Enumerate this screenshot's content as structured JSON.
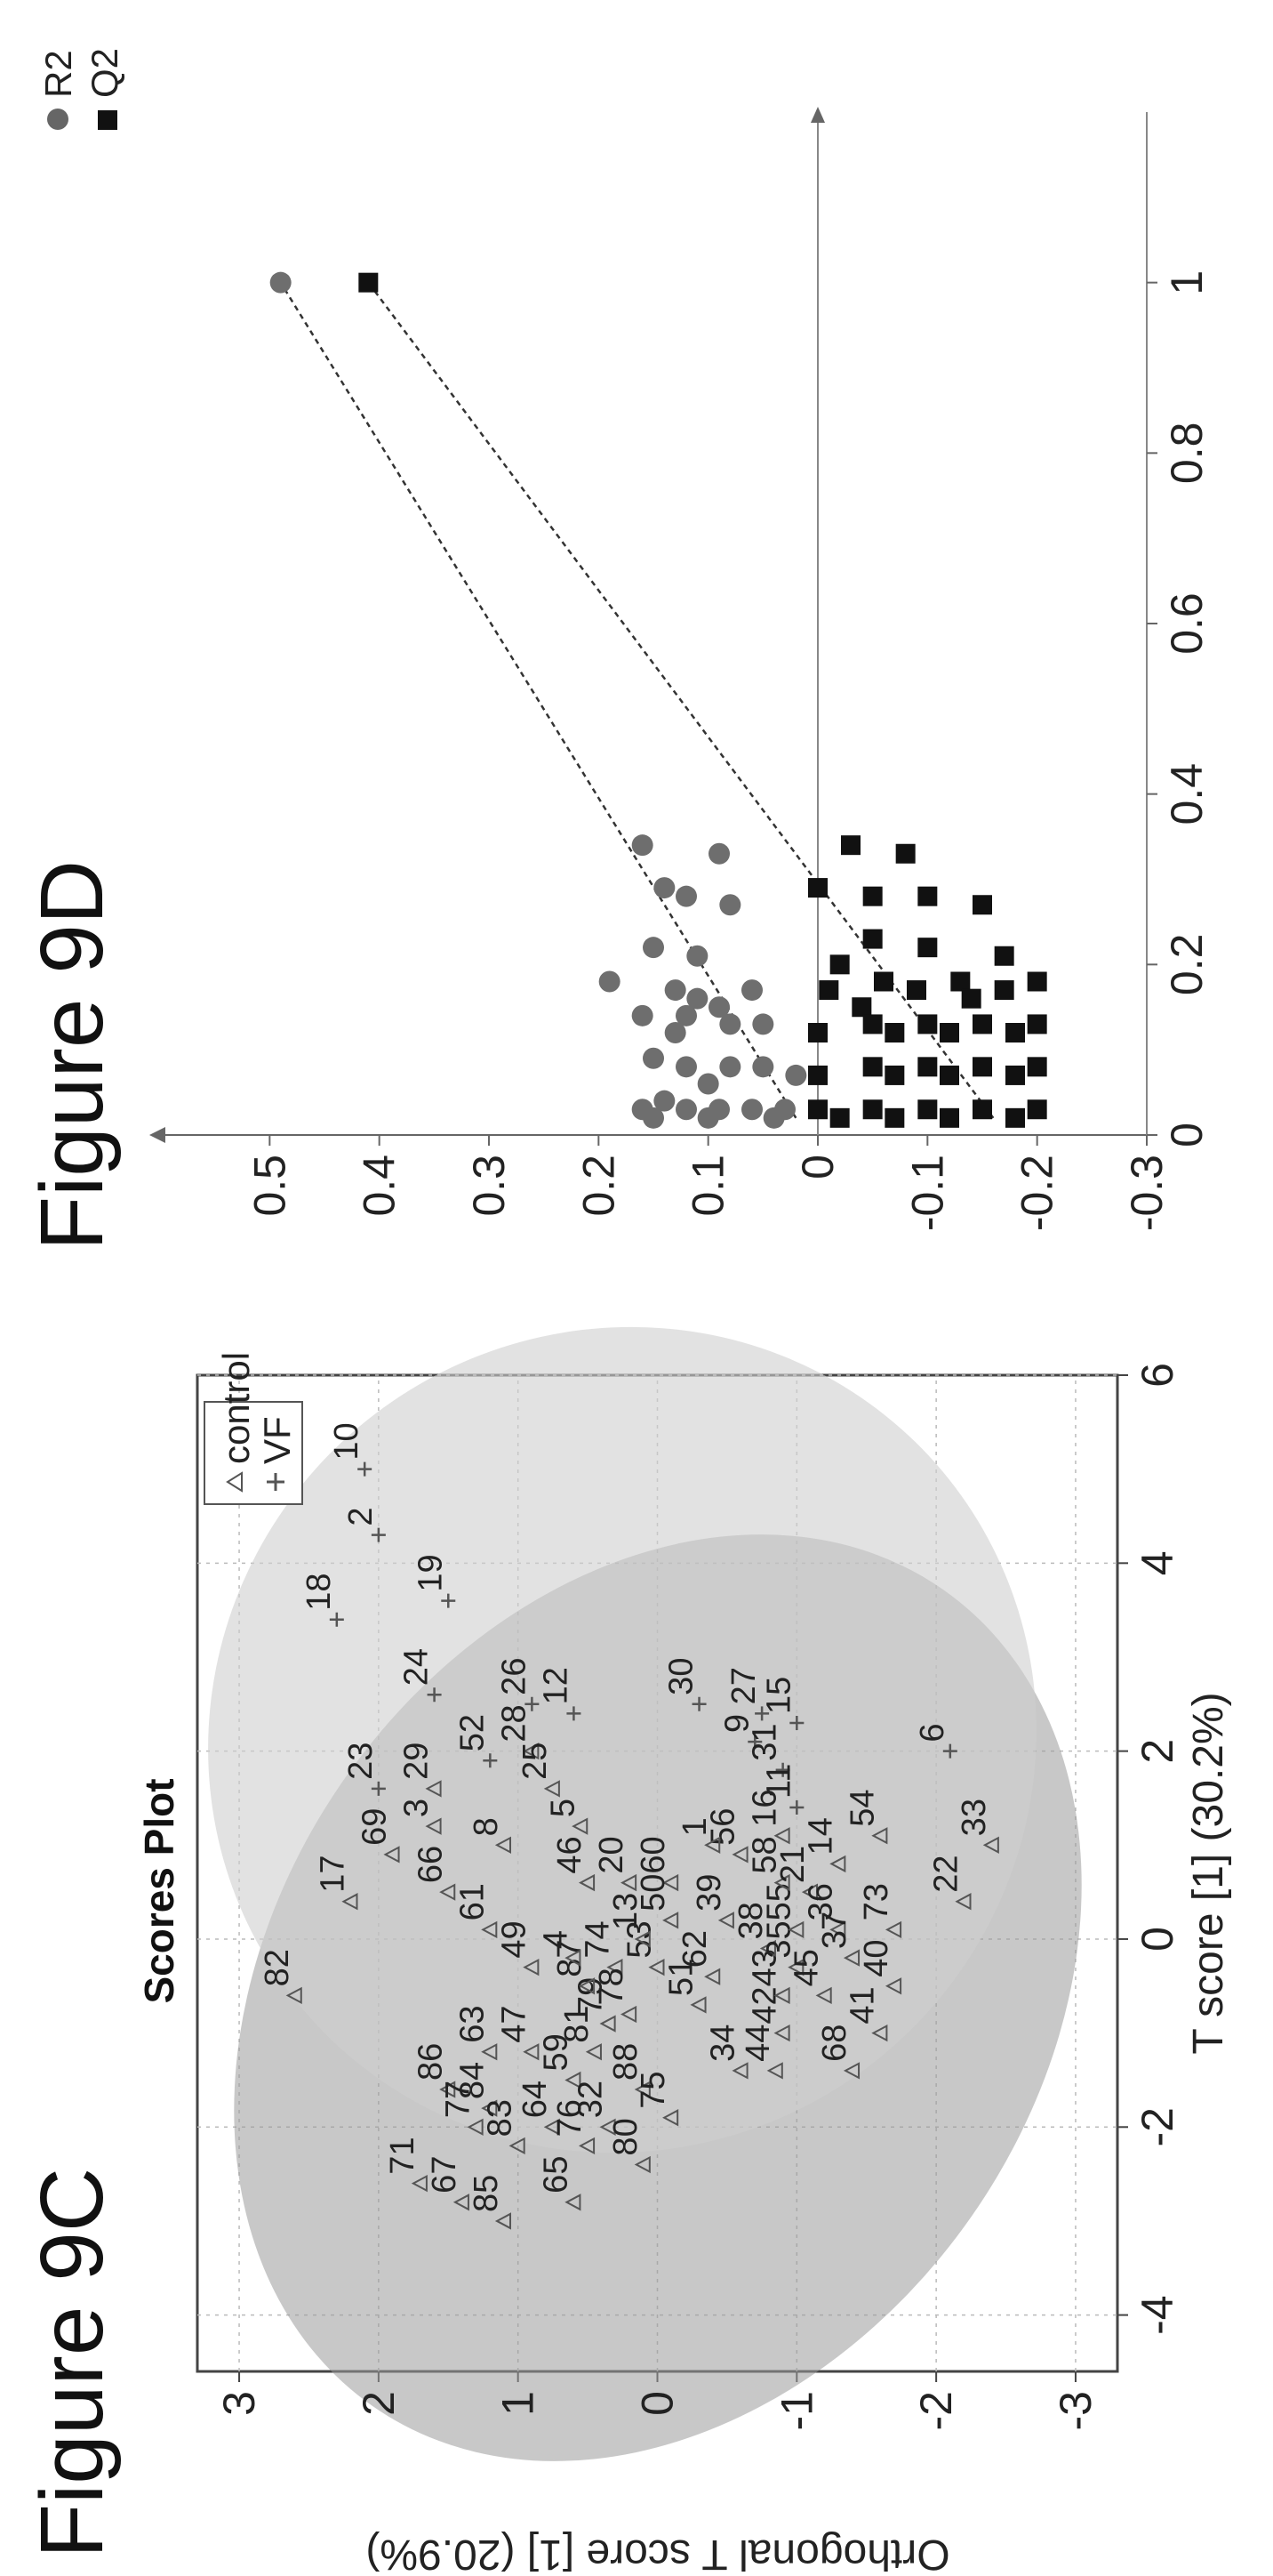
{
  "chart_data": [
    {
      "figure_label": "Figure 9C",
      "type": "scatter",
      "title": "Scores Plot",
      "xlabel": "T score [1] (30.2%)",
      "ylabel": "Orthogonal T score [1] (20.9%)",
      "xlim": [
        -4.6,
        6
      ],
      "ylim": [
        -3.3,
        3.3
      ],
      "xticks": [
        "-4",
        "-2",
        "0",
        "2",
        "4",
        "6"
      ],
      "yticks": [
        "-3",
        "-2",
        "-1",
        "0",
        "1",
        "2",
        "3"
      ],
      "legend": {
        "placement": "top-right",
        "entries": [
          "control",
          "VF"
        ]
      },
      "grid": true,
      "series": [
        {
          "name": "control",
          "marker": "triangle",
          "points": [
            {
              "label": "82",
              "x": -0.6,
              "y": 2.6
            },
            {
              "label": "17",
              "x": 0.4,
              "y": 2.2
            },
            {
              "label": "71",
              "x": -2.6,
              "y": 1.7
            },
            {
              "label": "86",
              "x": -1.6,
              "y": 1.5
            },
            {
              "label": "67",
              "x": -2.8,
              "y": 1.4
            },
            {
              "label": "77",
              "x": -2.0,
              "y": 1.3
            },
            {
              "label": "84",
              "x": -1.8,
              "y": 1.2
            },
            {
              "label": "85",
              "x": -3.0,
              "y": 1.1
            },
            {
              "label": "83",
              "x": -2.2,
              "y": 1.0
            },
            {
              "label": "63",
              "x": -1.2,
              "y": 1.2
            },
            {
              "label": "47",
              "x": -1.2,
              "y": 0.9
            },
            {
              "label": "69",
              "x": 0.9,
              "y": 1.9
            },
            {
              "label": "66",
              "x": 0.5,
              "y": 1.5
            },
            {
              "label": "61",
              "x": 0.1,
              "y": 1.2
            },
            {
              "label": "64",
              "x": -2.0,
              "y": 0.75
            },
            {
              "label": "65",
              "x": -2.8,
              "y": 0.6
            },
            {
              "label": "76",
              "x": -2.2,
              "y": 0.5
            },
            {
              "label": "59",
              "x": -1.5,
              "y": 0.6
            },
            {
              "label": "81",
              "x": -1.2,
              "y": 0.45
            },
            {
              "label": "32",
              "x": -2.0,
              "y": 0.35
            },
            {
              "label": "88",
              "x": -1.6,
              "y": 0.1
            },
            {
              "label": "80",
              "x": -2.4,
              "y": 0.1
            },
            {
              "label": "75",
              "x": -1.9,
              "y": -0.1
            },
            {
              "label": "79",
              "x": -0.9,
              "y": 0.35
            },
            {
              "label": "87",
              "x": -0.5,
              "y": 0.5
            },
            {
              "label": "74",
              "x": -0.3,
              "y": 0.3
            },
            {
              "label": "78",
              "x": -0.8,
              "y": 0.2
            },
            {
              "label": "53",
              "x": -0.3,
              "y": 0.0
            },
            {
              "label": "13",
              "x": 0.0,
              "y": 0.1
            },
            {
              "label": "49",
              "x": -0.3,
              "y": 0.9
            },
            {
              "label": "4",
              "x": -0.2,
              "y": 0.6
            },
            {
              "label": "46",
              "x": 0.6,
              "y": 0.5
            },
            {
              "label": "20",
              "x": 0.6,
              "y": 0.2
            },
            {
              "label": "60",
              "x": 0.6,
              "y": -0.1
            },
            {
              "label": "50",
              "x": 0.2,
              "y": -0.1
            },
            {
              "label": "51",
              "x": -0.7,
              "y": -0.3
            },
            {
              "label": "62",
              "x": -0.4,
              "y": -0.4
            },
            {
              "label": "39",
              "x": 0.2,
              "y": -0.5
            },
            {
              "label": "34",
              "x": -1.4,
              "y": -0.6
            },
            {
              "label": "44",
              "x": -1.4,
              "y": -0.85
            },
            {
              "label": "42",
              "x": -1.0,
              "y": -0.9
            },
            {
              "label": "43",
              "x": -0.6,
              "y": -0.9
            },
            {
              "label": "38",
              "x": -0.1,
              "y": -0.8
            },
            {
              "label": "35",
              "x": -0.3,
              "y": -1.0
            },
            {
              "label": "55",
              "x": 0.1,
              "y": -1.0
            },
            {
              "label": "58",
              "x": 0.6,
              "y": -0.9
            },
            {
              "label": "21",
              "x": 0.5,
              "y": -1.1
            },
            {
              "label": "45",
              "x": -0.6,
              "y": -1.2
            },
            {
              "label": "36",
              "x": 0.1,
              "y": -1.3
            },
            {
              "label": "37",
              "x": -0.2,
              "y": -1.4
            },
            {
              "label": "68",
              "x": -1.4,
              "y": -1.4
            },
            {
              "label": "41",
              "x": -1.0,
              "y": -1.6
            },
            {
              "label": "40",
              "x": -0.5,
              "y": -1.7
            },
            {
              "label": "73",
              "x": 0.1,
              "y": -1.7
            },
            {
              "label": "14",
              "x": 0.8,
              "y": -1.3
            },
            {
              "label": "54",
              "x": 1.1,
              "y": -1.6
            },
            {
              "label": "22",
              "x": 0.4,
              "y": -2.2
            },
            {
              "label": "33",
              "x": 1.0,
              "y": -2.4
            },
            {
              "label": "56",
              "x": 0.9,
              "y": -0.6
            },
            {
              "label": "16",
              "x": 1.1,
              "y": -0.9
            },
            {
              "label": "1",
              "x": 1.0,
              "y": -0.4
            },
            {
              "label": "5",
              "x": 1.2,
              "y": 0.55
            },
            {
              "label": "8",
              "x": 1.0,
              "y": 1.1
            },
            {
              "label": "3",
              "x": 1.2,
              "y": 1.6
            },
            {
              "label": "29",
              "x": 1.6,
              "y": 1.6
            },
            {
              "label": "28",
              "x": 2.0,
              "y": 0.9
            },
            {
              "label": "25",
              "x": 1.6,
              "y": 0.75
            }
          ]
        },
        {
          "name": "VF",
          "marker": "plus",
          "points": [
            {
              "label": "10",
              "x": 5.0,
              "y": 2.1
            },
            {
              "label": "2",
              "x": 4.3,
              "y": 2.0
            },
            {
              "label": "19",
              "x": 3.6,
              "y": 1.5
            },
            {
              "label": "18",
              "x": 3.4,
              "y": 2.3
            },
            {
              "label": "24",
              "x": 2.6,
              "y": 1.6
            },
            {
              "label": "23",
              "x": 1.6,
              "y": 2.0
            },
            {
              "label": "26",
              "x": 2.5,
              "y": 0.9
            },
            {
              "label": "52",
              "x": 1.9,
              "y": 1.2
            },
            {
              "label": "12",
              "x": 2.4,
              "y": 0.6
            },
            {
              "label": "30",
              "x": 2.5,
              "y": -0.3
            },
            {
              "label": "27",
              "x": 2.4,
              "y": -0.75
            },
            {
              "label": "15",
              "x": 2.3,
              "y": -1.0
            },
            {
              "label": "9",
              "x": 2.1,
              "y": -0.7
            },
            {
              "label": "31",
              "x": 1.8,
              "y": -0.9
            },
            {
              "label": "11",
              "x": 1.4,
              "y": -1.0
            },
            {
              "label": "6",
              "x": 2.0,
              "y": -2.1
            }
          ]
        }
      ]
    },
    {
      "figure_label": "Figure 9D",
      "type": "scatter",
      "xlim": [
        0,
        1.2
      ],
      "ylim": [
        -0.3,
        0.6
      ],
      "xticks": [
        "0",
        "0.2",
        "0.4",
        "0.6",
        "0.8",
        "1"
      ],
      "yticks": [
        "-0.3",
        "-0.2",
        "-0.1",
        "0",
        "0.1",
        "0.2",
        "0.3",
        "0.4",
        "0.5"
      ],
      "legend": {
        "placement": "top-right",
        "entries": [
          "R2",
          "Q2"
        ]
      },
      "series": [
        {
          "name": "R2",
          "marker": "circle",
          "regression": {
            "x": [
              0.02,
              1.0
            ],
            "y": [
              0.02,
              0.49
            ]
          },
          "points": [
            {
              "x": 1.0,
              "y": 0.49
            },
            {
              "x": 0.34,
              "y": 0.16
            },
            {
              "x": 0.33,
              "y": 0.09
            },
            {
              "x": 0.29,
              "y": 0.14
            },
            {
              "x": 0.28,
              "y": 0.12
            },
            {
              "x": 0.27,
              "y": 0.08
            },
            {
              "x": 0.22,
              "y": 0.15
            },
            {
              "x": 0.21,
              "y": 0.11
            },
            {
              "x": 0.18,
              "y": 0.19
            },
            {
              "x": 0.17,
              "y": 0.13
            },
            {
              "x": 0.17,
              "y": 0.06
            },
            {
              "x": 0.16,
              "y": 0.11
            },
            {
              "x": 0.15,
              "y": 0.09
            },
            {
              "x": 0.14,
              "y": 0.16
            },
            {
              "x": 0.14,
              "y": 0.12
            },
            {
              "x": 0.13,
              "y": 0.08
            },
            {
              "x": 0.13,
              "y": 0.05
            },
            {
              "x": 0.12,
              "y": 0.13
            },
            {
              "x": 0.09,
              "y": 0.15
            },
            {
              "x": 0.08,
              "y": 0.12
            },
            {
              "x": 0.08,
              "y": 0.08
            },
            {
              "x": 0.08,
              "y": 0.05
            },
            {
              "x": 0.07,
              "y": 0.02
            },
            {
              "x": 0.06,
              "y": 0.1
            },
            {
              "x": 0.04,
              "y": 0.14
            },
            {
              "x": 0.03,
              "y": 0.16
            },
            {
              "x": 0.03,
              "y": 0.12
            },
            {
              "x": 0.03,
              "y": 0.09
            },
            {
              "x": 0.03,
              "y": 0.06
            },
            {
              "x": 0.03,
              "y": 0.03
            },
            {
              "x": 0.02,
              "y": 0.15
            },
            {
              "x": 0.02,
              "y": 0.1
            },
            {
              "x": 0.02,
              "y": 0.04
            }
          ]
        },
        {
          "name": "Q2",
          "marker": "square",
          "regression": {
            "x": [
              0.02,
              1.0
            ],
            "y": [
              -0.16,
              0.41
            ]
          },
          "points": [
            {
              "x": 1.0,
              "y": 0.41
            },
            {
              "x": 0.34,
              "y": -0.03
            },
            {
              "x": 0.33,
              "y": -0.08
            },
            {
              "x": 0.29,
              "y": 0.0
            },
            {
              "x": 0.28,
              "y": -0.05
            },
            {
              "x": 0.28,
              "y": -0.1
            },
            {
              "x": 0.27,
              "y": -0.15
            },
            {
              "x": 0.23,
              "y": -0.05
            },
            {
              "x": 0.22,
              "y": -0.1
            },
            {
              "x": 0.21,
              "y": -0.17
            },
            {
              "x": 0.2,
              "y": -0.02
            },
            {
              "x": 0.18,
              "y": -0.2
            },
            {
              "x": 0.18,
              "y": -0.13
            },
            {
              "x": 0.18,
              "y": -0.06
            },
            {
              "x": 0.17,
              "y": -0.17
            },
            {
              "x": 0.17,
              "y": -0.09
            },
            {
              "x": 0.17,
              "y": -0.01
            },
            {
              "x": 0.16,
              "y": -0.14
            },
            {
              "x": 0.15,
              "y": -0.04
            },
            {
              "x": 0.13,
              "y": -0.2
            },
            {
              "x": 0.13,
              "y": -0.15
            },
            {
              "x": 0.13,
              "y": -0.1
            },
            {
              "x": 0.13,
              "y": -0.05
            },
            {
              "x": 0.12,
              "y": 0.0
            },
            {
              "x": 0.12,
              "y": -0.18
            },
            {
              "x": 0.12,
              "y": -0.12
            },
            {
              "x": 0.12,
              "y": -0.07
            },
            {
              "x": 0.08,
              "y": -0.2
            },
            {
              "x": 0.08,
              "y": -0.15
            },
            {
              "x": 0.08,
              "y": -0.1
            },
            {
              "x": 0.08,
              "y": -0.05
            },
            {
              "x": 0.07,
              "y": 0.0
            },
            {
              "x": 0.07,
              "y": -0.18
            },
            {
              "x": 0.07,
              "y": -0.12
            },
            {
              "x": 0.07,
              "y": -0.07
            },
            {
              "x": 0.03,
              "y": -0.2
            },
            {
              "x": 0.03,
              "y": -0.15
            },
            {
              "x": 0.03,
              "y": -0.1
            },
            {
              "x": 0.03,
              "y": -0.05
            },
            {
              "x": 0.03,
              "y": 0.0
            },
            {
              "x": 0.02,
              "y": -0.18
            },
            {
              "x": 0.02,
              "y": -0.12
            },
            {
              "x": 0.02,
              "y": -0.07
            },
            {
              "x": 0.02,
              "y": -0.02
            }
          ]
        }
      ]
    }
  ]
}
